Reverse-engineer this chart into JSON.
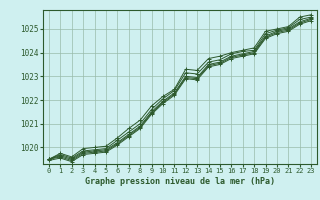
{
  "title": "Graphe pression niveau de la mer (hPa)",
  "bg_color": "#cff0f0",
  "grid_color": "#99bbaa",
  "line_color": "#2d5a2d",
  "xlim": [
    -0.5,
    23.5
  ],
  "ylim": [
    1019.3,
    1025.8
  ],
  "yticks": [
    1020,
    1021,
    1022,
    1023,
    1024,
    1025
  ],
  "xticks": [
    0,
    1,
    2,
    3,
    4,
    5,
    6,
    7,
    8,
    9,
    10,
    11,
    12,
    13,
    14,
    15,
    16,
    17,
    18,
    19,
    20,
    21,
    22,
    23
  ],
  "series": [
    [
      1019.5,
      1019.75,
      1019.6,
      1019.95,
      1020.0,
      1020.05,
      1020.4,
      1020.8,
      1021.15,
      1021.75,
      1022.15,
      1022.45,
      1023.3,
      1023.25,
      1023.75,
      1023.85,
      1024.0,
      1024.1,
      1024.2,
      1024.9,
      1025.0,
      1025.1,
      1025.5,
      1025.6
    ],
    [
      1019.5,
      1019.7,
      1019.55,
      1019.85,
      1019.9,
      1019.95,
      1020.3,
      1020.65,
      1021.0,
      1021.6,
      1022.05,
      1022.4,
      1023.15,
      1023.1,
      1023.6,
      1023.7,
      1023.95,
      1024.05,
      1024.1,
      1024.8,
      1024.95,
      1025.05,
      1025.4,
      1025.5
    ],
    [
      1019.5,
      1019.65,
      1019.5,
      1019.8,
      1019.85,
      1019.9,
      1020.2,
      1020.55,
      1020.9,
      1021.5,
      1021.95,
      1022.3,
      1023.0,
      1022.95,
      1023.5,
      1023.6,
      1023.85,
      1023.95,
      1024.05,
      1024.7,
      1024.9,
      1025.0,
      1025.3,
      1025.45
    ],
    [
      1019.5,
      1019.6,
      1019.45,
      1019.75,
      1019.8,
      1019.85,
      1020.15,
      1020.5,
      1020.85,
      1021.45,
      1021.9,
      1022.25,
      1022.95,
      1022.9,
      1023.45,
      1023.55,
      1023.8,
      1023.9,
      1024.0,
      1024.65,
      1024.85,
      1024.95,
      1025.25,
      1025.4
    ],
    [
      1019.45,
      1019.55,
      1019.4,
      1019.7,
      1019.75,
      1019.8,
      1020.1,
      1020.45,
      1020.8,
      1021.4,
      1021.85,
      1022.2,
      1022.9,
      1022.85,
      1023.4,
      1023.5,
      1023.75,
      1023.85,
      1023.95,
      1024.6,
      1024.8,
      1024.9,
      1025.2,
      1025.35
    ]
  ]
}
